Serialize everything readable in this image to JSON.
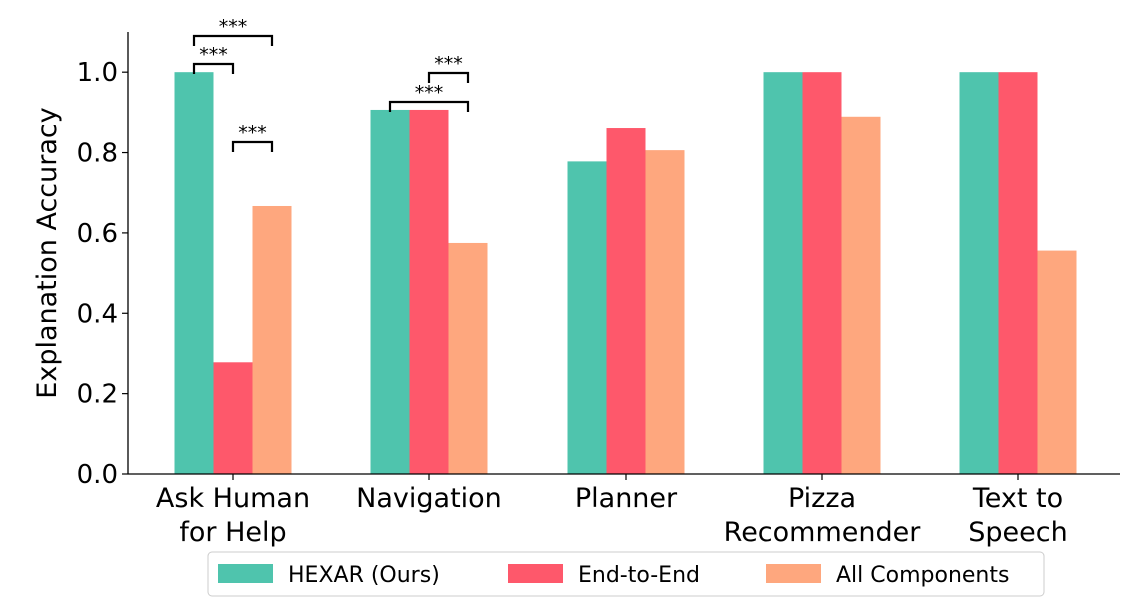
{
  "chart_data": {
    "type": "bar",
    "ylabel": "Explanation Accuracy",
    "xlabel": "",
    "ylim": [
      0,
      1.1
    ],
    "yticks": [
      "0.0",
      "0.2",
      "0.4",
      "0.6",
      "0.8",
      "1.0"
    ],
    "categories": [
      [
        "Ask Human",
        "for Help"
      ],
      [
        "Navigation"
      ],
      [
        "Planner"
      ],
      [
        "Pizza",
        "Recommender"
      ],
      [
        "Text to",
        "Speech"
      ]
    ],
    "series": [
      {
        "name": "HEXAR (Ours)",
        "color": "#4fc4ad",
        "values": [
          1.0,
          0.906,
          0.778,
          1.0,
          1.0
        ]
      },
      {
        "name": "End-to-End",
        "color": "#fe586b",
        "values": [
          0.278,
          0.906,
          0.861,
          1.0,
          1.0
        ]
      },
      {
        "name": "All Components",
        "color": "#fea77e",
        "values": [
          0.667,
          0.575,
          0.806,
          0.889,
          0.556
        ]
      }
    ],
    "significance": [
      {
        "category": 0,
        "from": 0,
        "to": 1,
        "label": "***"
      },
      {
        "category": 0,
        "from": 0,
        "to": 2,
        "label": "***"
      },
      {
        "category": 0,
        "from": 1,
        "to": 2,
        "label": "***"
      },
      {
        "category": 1,
        "from": 0,
        "to": 2,
        "label": "***"
      },
      {
        "category": 1,
        "from": 1,
        "to": 2,
        "label": "***"
      }
    ],
    "legend_position": "bottom-center",
    "grid": false
  }
}
